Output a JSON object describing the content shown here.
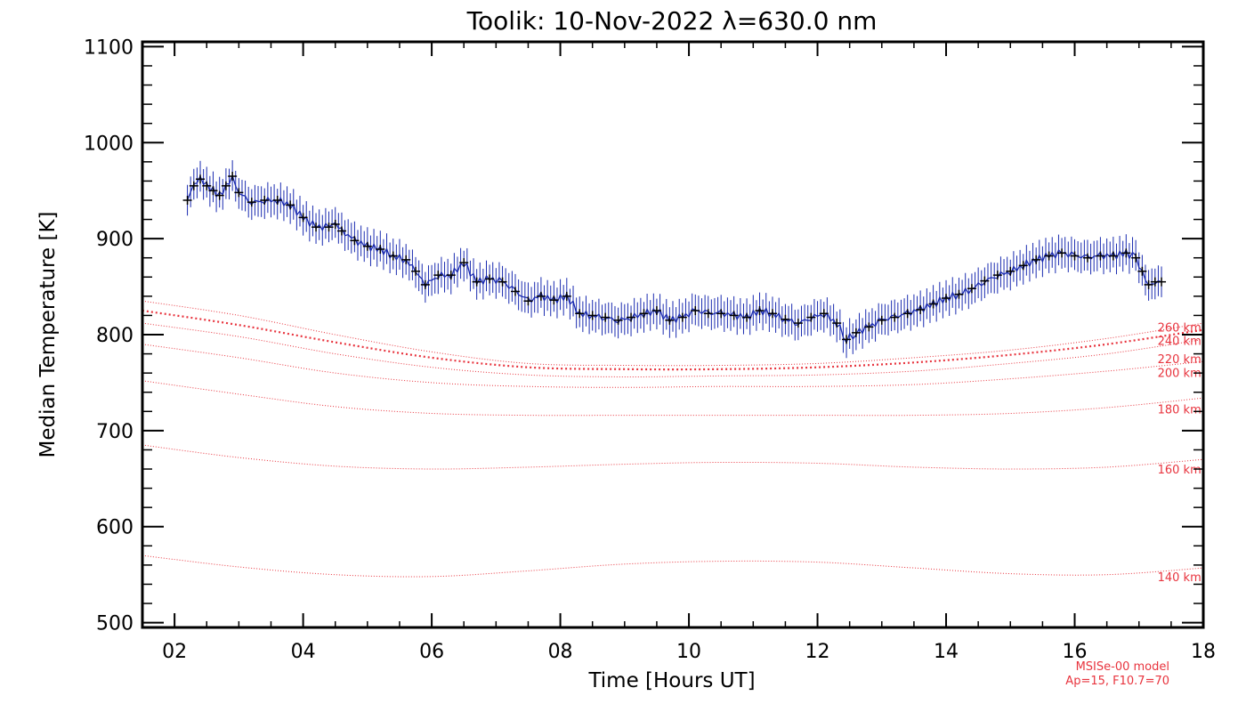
{
  "chart_data": {
    "type": "line",
    "title": "Toolik: 10-Nov-2022 λ=630.0 nm",
    "xlabel": "Time [Hours UT]",
    "ylabel": "Median Temperature [K]",
    "xlim": [
      1.5,
      18.0
    ],
    "ylim": [
      495,
      1105
    ],
    "xticks": [
      2,
      4,
      6,
      8,
      10,
      12,
      14,
      16,
      18
    ],
    "xtick_labels": [
      "02",
      "04",
      "06",
      "08",
      "10",
      "12",
      "14",
      "16",
      "18"
    ],
    "yticks": [
      500,
      600,
      700,
      800,
      900,
      1000,
      1100
    ],
    "ytick_labels": [
      "500",
      "600",
      "700",
      "800",
      "900",
      "1000",
      "1100"
    ],
    "grid": false,
    "measured": {
      "color": "#1a2bb0",
      "marker_color": "#000000",
      "error_bar_halfwidth": 16,
      "x": [
        2.2,
        2.3,
        2.4,
        2.5,
        2.6,
        2.7,
        2.8,
        2.9,
        3.0,
        3.2,
        3.4,
        3.6,
        3.8,
        4.0,
        4.2,
        4.4,
        4.5,
        4.6,
        4.8,
        5.0,
        5.2,
        5.4,
        5.6,
        5.75,
        5.9,
        6.1,
        6.3,
        6.5,
        6.7,
        6.9,
        7.1,
        7.3,
        7.5,
        7.7,
        7.9,
        8.1,
        8.3,
        8.5,
        8.7,
        8.9,
        9.1,
        9.3,
        9.5,
        9.7,
        9.9,
        10.1,
        10.3,
        10.5,
        10.7,
        10.9,
        11.1,
        11.3,
        11.5,
        11.7,
        11.9,
        12.1,
        12.3,
        12.45,
        12.6,
        12.8,
        13.0,
        13.2,
        13.4,
        13.6,
        13.8,
        14.0,
        14.2,
        14.4,
        14.6,
        14.8,
        15.0,
        15.2,
        15.4,
        15.6,
        15.8,
        16.0,
        16.2,
        16.4,
        16.6,
        16.8,
        16.95,
        17.05,
        17.15,
        17.25,
        17.35
      ],
      "y": [
        940,
        955,
        962,
        955,
        950,
        945,
        955,
        965,
        948,
        938,
        940,
        940,
        935,
        922,
        912,
        912,
        915,
        908,
        898,
        892,
        889,
        882,
        878,
        866,
        852,
        862,
        862,
        875,
        855,
        858,
        855,
        845,
        835,
        840,
        836,
        840,
        822,
        820,
        818,
        815,
        818,
        822,
        825,
        815,
        818,
        825,
        822,
        822,
        820,
        818,
        825,
        822,
        816,
        812,
        818,
        822,
        812,
        795,
        802,
        808,
        815,
        818,
        822,
        826,
        832,
        838,
        842,
        848,
        856,
        862,
        866,
        872,
        878,
        882,
        885,
        882,
        880,
        882,
        882,
        885,
        880,
        866,
        852,
        855,
        855
      ]
    },
    "series": [
      {
        "name": "260 km",
        "x": [
          1.5,
          3.0,
          4.5,
          6.0,
          7.5,
          9.0,
          10.5,
          12.0,
          13.5,
          15.0,
          16.5,
          18.0
        ],
        "y": [
          835,
          820,
          800,
          782,
          770,
          768,
          768,
          770,
          776,
          784,
          796,
          812
        ],
        "width": 1.0
      },
      {
        "name": "240 km",
        "x": [
          1.5,
          3.0,
          4.5,
          6.0,
          7.5,
          9.0,
          10.5,
          12.0,
          13.5,
          15.0,
          16.5,
          18.0
        ],
        "y": [
          825,
          810,
          792,
          776,
          766,
          764,
          764,
          766,
          771,
          779,
          790,
          805
        ],
        "width": 2.2
      },
      {
        "name": "220 km",
        "x": [
          1.5,
          3.0,
          4.5,
          6.0,
          7.5,
          9.0,
          10.5,
          12.0,
          13.5,
          15.0,
          16.5,
          18.0
        ],
        "y": [
          812,
          798,
          780,
          766,
          758,
          756,
          757,
          758,
          762,
          770,
          780,
          795
        ],
        "width": 1.0
      },
      {
        "name": "200 km",
        "x": [
          1.5,
          3.0,
          4.5,
          6.0,
          7.5,
          9.0,
          10.5,
          12.0,
          13.5,
          15.0,
          16.5,
          18.0
        ],
        "y": [
          790,
          776,
          760,
          750,
          746,
          745,
          746,
          746,
          748,
          754,
          762,
          772
        ],
        "width": 1.0
      },
      {
        "name": "180 km",
        "x": [
          1.5,
          3.0,
          4.5,
          6.0,
          7.5,
          9.0,
          10.5,
          12.0,
          13.5,
          15.0,
          16.5,
          18.0
        ],
        "y": [
          752,
          738,
          725,
          718,
          716,
          716,
          716,
          716,
          716,
          718,
          724,
          734
        ],
        "width": 1.0
      },
      {
        "name": "160 km",
        "x": [
          1.5,
          3.0,
          4.5,
          6.0,
          7.5,
          9.0,
          10.5,
          12.0,
          13.5,
          15.0,
          16.5,
          18.0
        ],
        "y": [
          685,
          672,
          663,
          660,
          662,
          665,
          667,
          666,
          662,
          660,
          662,
          670
        ],
        "width": 1.0
      },
      {
        "name": "140 km",
        "x": [
          1.5,
          3.0,
          4.5,
          6.0,
          7.5,
          9.0,
          10.5,
          12.0,
          13.5,
          15.0,
          16.5,
          18.0
        ],
        "y": [
          570,
          558,
          550,
          548,
          554,
          561,
          564,
          563,
          557,
          551,
          550,
          557
        ],
        "width": 1.0
      }
    ],
    "model_color": "#e8343e",
    "annotation_lines": [
      "MSISe-00 model",
      "Ap=15, F10.7=70"
    ]
  }
}
